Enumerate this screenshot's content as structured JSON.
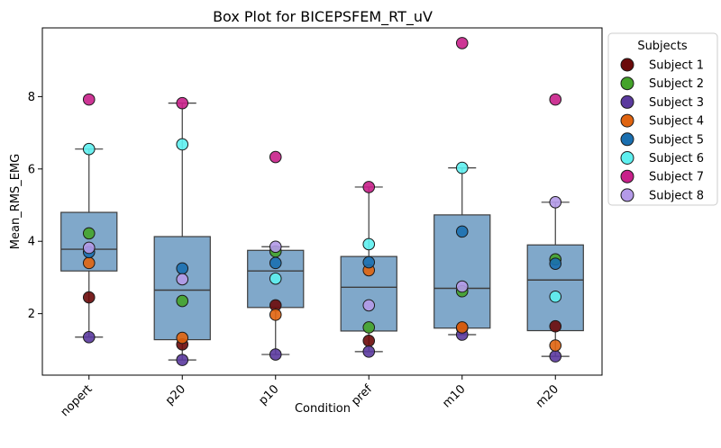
{
  "chart_data": {
    "type": "box",
    "title": "Box Plot for BICEPSFEM_RT_uV",
    "xlabel": "Condition",
    "ylabel": "Mean_RMS_EMG",
    "categories": [
      "nopert",
      "p20",
      "p10",
      "pref",
      "m10",
      "m20"
    ],
    "ylim": [
      0.3,
      9.9
    ],
    "yticks": [
      2,
      4,
      6,
      8
    ],
    "grid": false,
    "box_color": "#4f86b5",
    "boxes": [
      {
        "q1": 3.18,
        "median": 3.78,
        "q3": 4.8,
        "whisker_low": 1.35,
        "whisker_high": 6.55
      },
      {
        "q1": 1.28,
        "median": 2.65,
        "q3": 4.13,
        "whisker_low": 0.72,
        "whisker_high": 7.82
      },
      {
        "q1": 2.17,
        "median": 3.18,
        "q3": 3.75,
        "whisker_low": 0.87,
        "whisker_high": 3.85
      },
      {
        "q1": 1.52,
        "median": 2.73,
        "q3": 3.58,
        "whisker_low": 0.95,
        "whisker_high": 5.5
      },
      {
        "q1": 1.6,
        "median": 2.7,
        "q3": 4.73,
        "whisker_low": 1.42,
        "whisker_high": 6.03
      },
      {
        "q1": 1.53,
        "median": 2.93,
        "q3": 3.9,
        "whisker_low": 0.82,
        "whisker_high": 5.08
      }
    ],
    "legend": {
      "title": "Subjects",
      "position": "outside-right"
    },
    "series": [
      {
        "name": "Subject 1",
        "color": "#6b0a0a",
        "values": [
          2.45,
          1.15,
          2.23,
          1.25,
          1.6,
          1.65
        ]
      },
      {
        "name": "Subject 2",
        "color": "#44a32a",
        "values": [
          4.22,
          2.35,
          3.72,
          1.62,
          2.62,
          3.5
        ]
      },
      {
        "name": "Subject 3",
        "color": "#5b3a9e",
        "values": [
          1.35,
          0.72,
          0.87,
          0.95,
          1.42,
          0.82
        ]
      },
      {
        "name": "Subject 4",
        "color": "#e06410",
        "values": [
          3.4,
          1.33,
          1.97,
          3.2,
          1.62,
          1.12
        ]
      },
      {
        "name": "Subject 5",
        "color": "#1a6fb0",
        "values": [
          3.7,
          3.25,
          3.4,
          3.42,
          4.27,
          3.38
        ]
      },
      {
        "name": "Subject 6",
        "color": "#5ef0f0",
        "values": [
          6.55,
          6.68,
          2.97,
          3.92,
          6.03,
          2.47
        ]
      },
      {
        "name": "Subject 7",
        "color": "#c8208a",
        "values": [
          7.92,
          7.82,
          6.33,
          5.5,
          9.48,
          7.92
        ]
      },
      {
        "name": "Subject 8",
        "color": "#b49ae8",
        "values": [
          3.82,
          2.95,
          3.85,
          2.23,
          2.75,
          5.08
        ]
      }
    ]
  }
}
